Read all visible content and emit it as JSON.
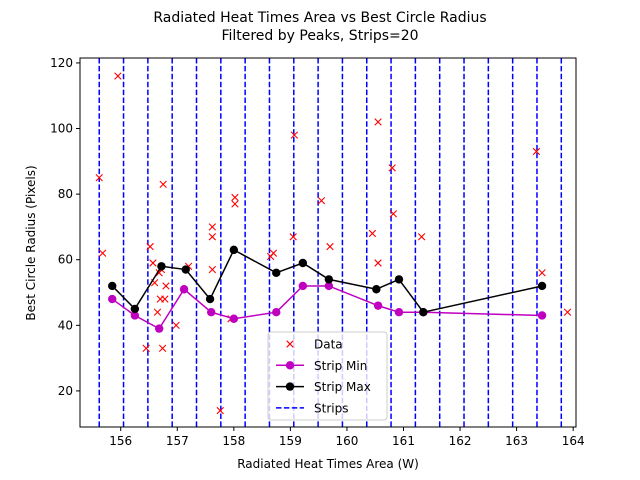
{
  "chart_data": {
    "type": "scatter",
    "title": "Radiated Heat Times Area vs Best Circle Radius",
    "subtitle": "Filtered by Peaks, Strips=20",
    "xlabel": "Radiated Heat Times Area (W)",
    "ylabel": "Best Circle Radius (Pixels)",
    "xlim": [
      155.28,
      164.05
    ],
    "ylim": [
      9.0,
      121.5
    ],
    "xticks": [
      156,
      157,
      158,
      159,
      160,
      161,
      162,
      163,
      164
    ],
    "yticks": [
      20,
      40,
      60,
      80,
      100,
      120
    ],
    "grid": false,
    "legend_position": "bottom-center",
    "series": [
      {
        "name": "Data",
        "style": "markers",
        "marker": "x",
        "color": "#ff0000",
        "points": [
          [
            155.62,
            85
          ],
          [
            155.68,
            62
          ],
          [
            155.95,
            116
          ],
          [
            156.45,
            33
          ],
          [
            156.52,
            64
          ],
          [
            156.57,
            59
          ],
          [
            156.6,
            53
          ],
          [
            156.65,
            44
          ],
          [
            156.68,
            56
          ],
          [
            156.7,
            48
          ],
          [
            156.72,
            57
          ],
          [
            156.74,
            33
          ],
          [
            156.75,
            83
          ],
          [
            156.78,
            48
          ],
          [
            156.8,
            52
          ],
          [
            156.98,
            40
          ],
          [
            157.2,
            58
          ],
          [
            157.62,
            70
          ],
          [
            157.62,
            67
          ],
          [
            157.62,
            57
          ],
          [
            157.76,
            14
          ],
          [
            157.95,
            42
          ],
          [
            158.02,
            79
          ],
          [
            158.02,
            77
          ],
          [
            158.65,
            61
          ],
          [
            158.7,
            62
          ],
          [
            159.05,
            67
          ],
          [
            159.07,
            98
          ],
          [
            159.55,
            78
          ],
          [
            159.7,
            64
          ],
          [
            160.45,
            68
          ],
          [
            160.55,
            102
          ],
          [
            160.55,
            59
          ],
          [
            160.8,
            88
          ],
          [
            160.82,
            74
          ],
          [
            161.32,
            67
          ],
          [
            163.35,
            93
          ],
          [
            163.45,
            56
          ],
          [
            163.9,
            44
          ]
        ]
      },
      {
        "name": "Strip Min",
        "style": "line-markers",
        "marker": "o",
        "color": "#bf00bf",
        "points": [
          [
            155.85,
            48
          ],
          [
            156.25,
            43
          ],
          [
            156.68,
            39
          ],
          [
            157.12,
            51
          ],
          [
            157.6,
            44
          ],
          [
            158.0,
            42
          ],
          [
            158.75,
            44
          ],
          [
            159.22,
            52
          ],
          [
            159.68,
            52
          ],
          [
            160.55,
            46
          ],
          [
            160.92,
            44
          ],
          [
            161.35,
            44
          ],
          [
            163.45,
            43
          ]
        ]
      },
      {
        "name": "Strip Max",
        "style": "line-markers",
        "marker": "o",
        "color": "#000000",
        "points": [
          [
            155.85,
            52
          ],
          [
            156.25,
            45
          ],
          [
            156.72,
            58
          ],
          [
            157.15,
            57
          ],
          [
            157.58,
            48
          ],
          [
            158.0,
            63
          ],
          [
            158.75,
            56
          ],
          [
            159.22,
            59
          ],
          [
            159.68,
            54
          ],
          [
            160.52,
            51
          ],
          [
            160.92,
            54
          ],
          [
            161.35,
            44
          ],
          [
            163.45,
            52
          ]
        ]
      },
      {
        "name": "Strips",
        "style": "vertical-dashed-lines",
        "color": "#0000ff",
        "x": [
          155.62,
          156.05,
          156.48,
          156.91,
          157.34,
          157.77,
          158.2,
          158.63,
          159.06,
          159.49,
          159.92,
          160.35,
          160.78,
          161.21,
          161.64,
          162.07,
          162.5,
          162.93,
          163.36,
          163.79
        ]
      }
    ]
  }
}
